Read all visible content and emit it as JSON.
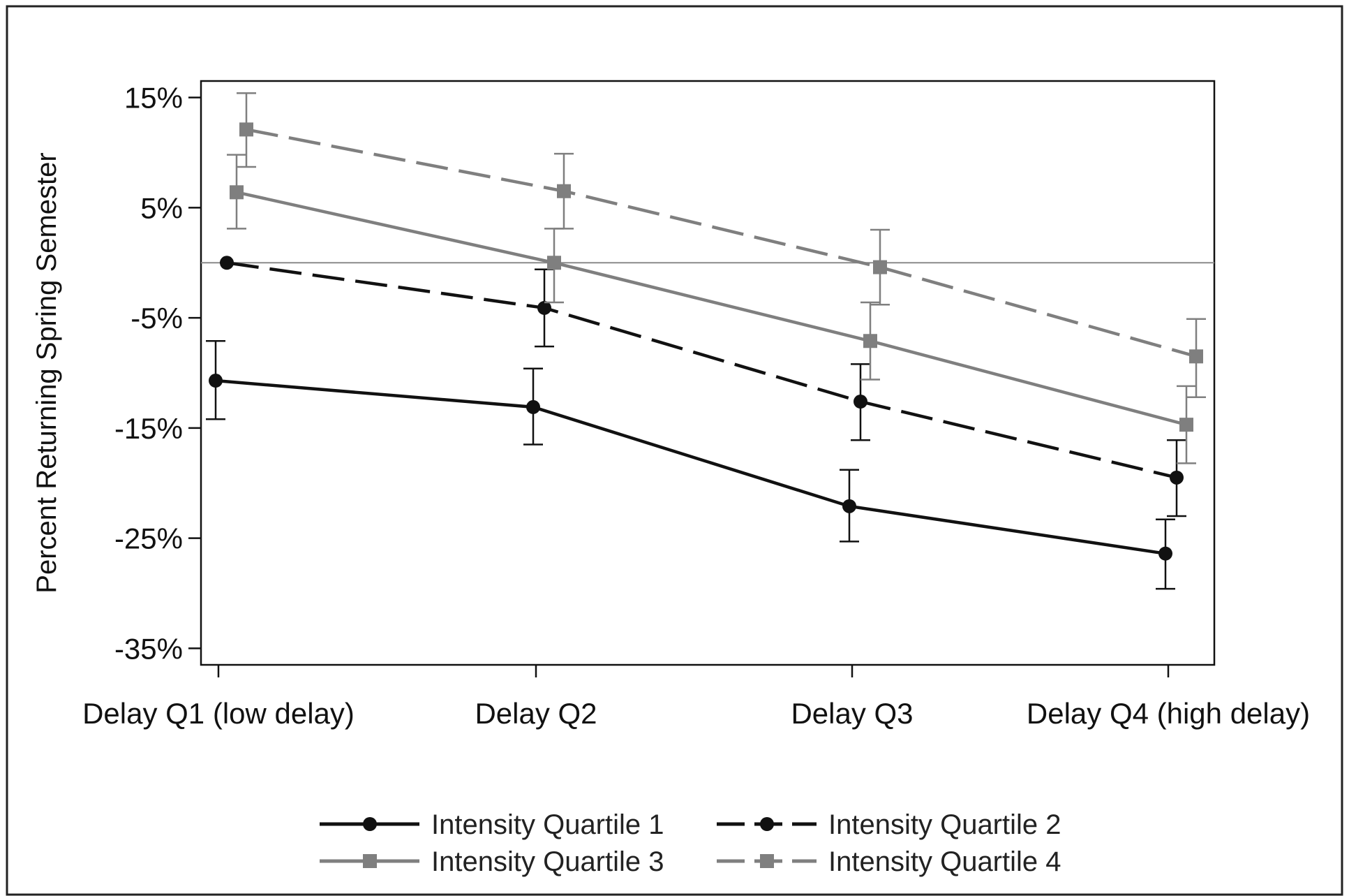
{
  "chart_data": {
    "type": "line",
    "ylabel": "Percent Returning Spring Semester",
    "xlabel": "",
    "categories": [
      "Delay Q1 (low delay)",
      "Delay Q2",
      "Delay Q3",
      "Delay Q4 (high delay)"
    ],
    "y_ticks": [
      15,
      5,
      -5,
      -15,
      -25,
      -35
    ],
    "y_tick_labels": [
      "15%",
      "5%",
      "-5%",
      "-15%",
      "-25%",
      "-35%"
    ],
    "ylim": [
      -36.5,
      16.5
    ],
    "reference_line": 0,
    "grid": false,
    "legend_position": "bottom",
    "series": [
      {
        "name": "Intensity Quartile 1",
        "color": "#111111",
        "dash": "solid",
        "marker": "circle",
        "values": [
          -10.7,
          -13.1,
          -22.1,
          -26.4
        ],
        "ci_low": [
          -14.2,
          -16.5,
          -25.3,
          -29.6
        ],
        "ci_high": [
          -7.1,
          -9.6,
          -18.8,
          -23.3
        ]
      },
      {
        "name": "Intensity Quartile 2",
        "color": "#111111",
        "dash": "dashed",
        "marker": "circle",
        "values": [
          0.0,
          -4.1,
          -12.6,
          -19.5
        ],
        "ci_low": [
          0.0,
          -7.6,
          -16.1,
          -23.0
        ],
        "ci_high": [
          0.0,
          -0.6,
          -9.2,
          -16.1
        ]
      },
      {
        "name": "Intensity Quartile 3",
        "color": "#7f7f7f",
        "dash": "solid",
        "marker": "square",
        "values": [
          6.4,
          0.0,
          -7.1,
          -14.7
        ],
        "ci_low": [
          3.1,
          -3.6,
          -10.6,
          -18.2
        ],
        "ci_high": [
          9.8,
          3.1,
          -3.6,
          -11.2
        ]
      },
      {
        "name": "Intensity Quartile 4",
        "color": "#7f7f7f",
        "dash": "dashed",
        "marker": "square",
        "values": [
          12.1,
          6.5,
          -0.4,
          -8.5
        ],
        "ci_low": [
          8.7,
          3.1,
          -3.8,
          -12.2
        ],
        "ci_high": [
          15.4,
          9.9,
          3.0,
          -5.1
        ]
      }
    ]
  }
}
